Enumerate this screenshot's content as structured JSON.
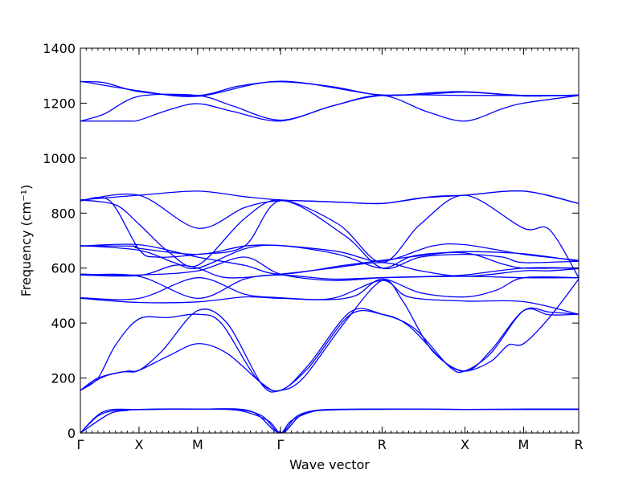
{
  "chart_data": {
    "type": "line",
    "title": "",
    "xlabel": "Wave vector",
    "ylabel": "Frequency (cm⁻¹)",
    "ylim": [
      0,
      1400
    ],
    "yticks": [
      0,
      200,
      400,
      600,
      800,
      1000,
      1200,
      1400
    ],
    "x_points": [
      {
        "label": "Γ",
        "x": 0
      },
      {
        "label": "X",
        "x": 1
      },
      {
        "label": "M",
        "x": 2
      },
      {
        "label": "Γ",
        "x": 3.414
      },
      {
        "label": "R",
        "x": 5.146
      },
      {
        "label": "X",
        "x": 6.56
      },
      {
        "label": "M",
        "x": 7.56
      },
      {
        "label": "R",
        "x": 8.5
      }
    ],
    "xlim": [
      0,
      8.5
    ],
    "grid": false,
    "line_color": "#0000ff",
    "series": [
      {
        "values": [
          [
            0,
            0
          ],
          [
            0.3,
            62
          ],
          [
            0.6,
            82
          ],
          [
            1,
            85
          ],
          [
            2,
            87
          ],
          [
            2.7,
            85
          ],
          [
            3.1,
            62
          ],
          [
            3.414,
            0
          ],
          [
            3.7,
            62
          ],
          [
            4.1,
            82
          ],
          [
            5.146,
            87
          ],
          [
            6.56,
            86
          ],
          [
            7.56,
            86
          ],
          [
            8.5,
            86
          ]
        ]
      },
      {
        "values": [
          [
            0,
            0
          ],
          [
            0.5,
            70
          ],
          [
            0.8,
            82
          ],
          [
            1,
            85
          ],
          [
            2,
            87
          ],
          [
            2.7,
            82
          ],
          [
            3.2,
            45
          ],
          [
            3.414,
            0
          ],
          [
            3.6,
            45
          ],
          [
            4.0,
            80
          ],
          [
            4.5,
            86
          ],
          [
            5.146,
            87
          ],
          [
            6.56,
            86
          ],
          [
            7.56,
            86
          ],
          [
            8.5,
            86
          ]
        ]
      },
      {
        "values": [
          [
            0,
            0
          ],
          [
            0.4,
            78
          ],
          [
            1,
            86
          ],
          [
            2,
            87
          ],
          [
            2.9,
            80
          ],
          [
            3.414,
            0
          ],
          [
            3.9,
            78
          ],
          [
            5.146,
            86
          ],
          [
            6.56,
            86
          ],
          [
            7.56,
            87
          ],
          [
            8.5,
            87
          ]
        ]
      },
      {
        "values": [
          [
            0,
            155
          ],
          [
            0.3,
            200
          ],
          [
            0.7,
            222
          ],
          [
            1,
            228
          ],
          [
            1.4,
            300
          ],
          [
            2,
            445
          ],
          [
            2.5,
            400
          ],
          [
            3.1,
            175
          ],
          [
            3.414,
            155
          ],
          [
            3.8,
            200
          ],
          [
            4.5,
            400
          ],
          [
            5.146,
            555
          ],
          [
            5.5,
            480
          ],
          [
            6.0,
            300
          ],
          [
            6.56,
            225
          ],
          [
            7.0,
            300
          ],
          [
            7.56,
            445
          ],
          [
            8.0,
            430
          ],
          [
            8.5,
            432
          ]
        ]
      },
      {
        "values": [
          [
            0,
            155
          ],
          [
            0.4,
            205
          ],
          [
            0.8,
            225
          ],
          [
            1,
            228
          ],
          [
            1.5,
            280
          ],
          [
            2,
            325
          ],
          [
            2.5,
            290
          ],
          [
            3.1,
            180
          ],
          [
            3.414,
            155
          ],
          [
            3.9,
            240
          ],
          [
            4.6,
            430
          ],
          [
            5.146,
            432
          ],
          [
            5.6,
            390
          ],
          [
            6.2,
            260
          ],
          [
            6.56,
            225
          ],
          [
            7.0,
            260
          ],
          [
            7.3,
            320
          ],
          [
            7.56,
            325
          ],
          [
            8.0,
            420
          ],
          [
            8.5,
            560
          ]
        ]
      },
      {
        "values": [
          [
            0,
            155
          ],
          [
            0.3,
            200
          ],
          [
            0.6,
            320
          ],
          [
            1,
            415
          ],
          [
            1.5,
            420
          ],
          [
            2,
            432
          ],
          [
            2.4,
            400
          ],
          [
            3.0,
            200
          ],
          [
            3.414,
            155
          ],
          [
            3.9,
            250
          ],
          [
            4.6,
            440
          ],
          [
            5.146,
            432
          ],
          [
            5.7,
            380
          ],
          [
            6.3,
            240
          ],
          [
            6.56,
            226
          ],
          [
            7.0,
            290
          ],
          [
            7.56,
            445
          ],
          [
            8.0,
            440
          ],
          [
            8.5,
            432
          ]
        ]
      },
      {
        "values": [
          [
            0,
            490
          ],
          [
            1,
            475
          ],
          [
            2,
            477
          ],
          [
            2.8,
            495
          ],
          [
            3.414,
            490
          ],
          [
            4.3,
            490
          ],
          [
            5.146,
            555
          ],
          [
            5.6,
            495
          ],
          [
            6.56,
            480
          ],
          [
            7.56,
            478
          ],
          [
            8.5,
            432
          ]
        ]
      },
      {
        "values": [
          [
            0,
            492
          ],
          [
            1,
            490
          ],
          [
            2,
            565
          ],
          [
            2.8,
            505
          ],
          [
            3.414,
            492
          ],
          [
            4.2,
            485
          ],
          [
            4.7,
            500
          ],
          [
            5.146,
            560
          ],
          [
            5.8,
            510
          ],
          [
            6.56,
            495
          ],
          [
            7.1,
            520
          ],
          [
            7.56,
            565
          ],
          [
            8.5,
            565
          ]
        ]
      },
      {
        "values": [
          [
            0,
            575
          ],
          [
            1,
            570
          ],
          [
            2,
            490
          ],
          [
            2.8,
            560
          ],
          [
            3.414,
            575
          ],
          [
            4.3,
            560
          ],
          [
            5.146,
            565
          ],
          [
            6.56,
            570
          ],
          [
            7.56,
            565
          ],
          [
            8.5,
            565
          ]
        ]
      },
      {
        "values": [
          [
            0,
            578
          ],
          [
            1,
            575
          ],
          [
            2,
            590
          ],
          [
            2.8,
            640
          ],
          [
            3.414,
            578
          ],
          [
            4.3,
            555
          ],
          [
            5.146,
            565
          ],
          [
            6.0,
            570
          ],
          [
            6.56,
            575
          ],
          [
            7.56,
            600
          ],
          [
            8.5,
            600
          ]
        ]
      },
      {
        "values": [
          [
            0,
            575
          ],
          [
            1,
            573
          ],
          [
            1.6,
            610
          ],
          [
            2,
            600
          ],
          [
            2.5,
            565
          ],
          [
            3.414,
            578
          ],
          [
            4.3,
            600
          ],
          [
            5.146,
            620
          ],
          [
            5.8,
            590
          ],
          [
            6.56,
            570
          ],
          [
            7.56,
            590
          ],
          [
            8.0,
            590
          ],
          [
            8.5,
            598
          ]
        ]
      },
      {
        "values": [
          [
            0,
            680
          ],
          [
            0.9,
            680
          ],
          [
            1,
            672
          ],
          [
            2,
            650
          ],
          [
            2.8,
            680
          ],
          [
            3.414,
            682
          ],
          [
            4.4,
            660
          ],
          [
            5.146,
            625
          ],
          [
            6.0,
            680
          ],
          [
            6.56,
            685
          ],
          [
            7.56,
            650
          ],
          [
            8.5,
            628
          ]
        ]
      },
      {
        "values": [
          [
            0,
            682
          ],
          [
            1,
            665
          ],
          [
            1.6,
            620
          ],
          [
            2,
            600
          ],
          [
            2.8,
            670
          ],
          [
            3.414,
            682
          ],
          [
            4.4,
            650
          ],
          [
            5.146,
            600
          ],
          [
            5.7,
            645
          ],
          [
            6.56,
            655
          ],
          [
            7.2,
            615
          ],
          [
            7.56,
            600
          ],
          [
            8.2,
            600
          ],
          [
            8.5,
            598
          ]
        ]
      },
      {
        "values": [
          [
            0,
            680
          ],
          [
            1,
            685
          ],
          [
            2,
            640
          ],
          [
            2.8,
            610
          ],
          [
            3.414,
            578
          ],
          [
            4.5,
            610
          ],
          [
            5.146,
            628
          ],
          [
            6.0,
            650
          ],
          [
            6.56,
            660
          ],
          [
            7.56,
            652
          ],
          [
            8.5,
            625
          ]
        ]
      },
      {
        "values": [
          [
            0,
            845
          ],
          [
            0.5,
            845
          ],
          [
            1,
            668
          ],
          [
            1.3,
            640
          ],
          [
            2,
            650
          ],
          [
            2.8,
            680
          ],
          [
            3.414,
            845
          ],
          [
            4.5,
            720
          ],
          [
            5.146,
            600
          ],
          [
            5.8,
            640
          ],
          [
            6.56,
            650
          ],
          [
            7.2,
            640
          ],
          [
            7.56,
            620
          ],
          [
            8.5,
            625
          ]
        ]
      },
      {
        "values": [
          [
            0,
            848
          ],
          [
            0.6,
            830
          ],
          [
            1,
            760
          ],
          [
            1.5,
            660
          ],
          [
            2,
            610
          ],
          [
            2.8,
            780
          ],
          [
            3.414,
            848
          ],
          [
            4.4,
            760
          ],
          [
            5.146,
            620
          ],
          [
            5.8,
            760
          ],
          [
            6.56,
            865
          ],
          [
            7.56,
            745
          ],
          [
            8.0,
            740
          ],
          [
            8.5,
            565
          ]
        ]
      },
      {
        "values": [
          [
            0,
            845
          ],
          [
            1,
            865
          ],
          [
            2,
            745
          ],
          [
            2.8,
            820
          ],
          [
            3.414,
            845
          ],
          [
            4.4,
            840
          ],
          [
            5.146,
            835
          ],
          [
            6.0,
            860
          ],
          [
            6.56,
            865
          ],
          [
            7.56,
            880
          ],
          [
            8.5,
            835
          ]
        ]
      },
      {
        "values": [
          [
            0,
            848
          ],
          [
            1,
            865
          ],
          [
            2,
            880
          ],
          [
            2.8,
            860
          ],
          [
            3.414,
            848
          ],
          [
            4.4,
            840
          ],
          [
            5.146,
            835
          ],
          [
            5.8,
            855
          ],
          [
            6.56,
            865
          ],
          [
            7.56,
            880
          ],
          [
            8.5,
            835
          ]
        ]
      },
      {
        "values": [
          [
            0,
            1135
          ],
          [
            0.8,
            1135
          ],
          [
            1,
            1138
          ],
          [
            1.5,
            1175
          ],
          [
            2,
            1198
          ],
          [
            2.6,
            1170
          ],
          [
            3.414,
            1135
          ],
          [
            4.3,
            1190
          ],
          [
            5.146,
            1228
          ],
          [
            5.9,
            1170
          ],
          [
            6.56,
            1135
          ],
          [
            7.2,
            1180
          ],
          [
            7.56,
            1200
          ],
          [
            8.5,
            1228
          ]
        ]
      },
      {
        "values": [
          [
            0,
            1135
          ],
          [
            0.4,
            1160
          ],
          [
            1,
            1225
          ],
          [
            2,
            1228
          ],
          [
            2.6,
            1190
          ],
          [
            3.414,
            1138
          ],
          [
            4.3,
            1190
          ],
          [
            5.146,
            1228
          ],
          [
            6.56,
            1228
          ],
          [
            7.56,
            1228
          ],
          [
            8.5,
            1228
          ]
        ]
      },
      {
        "values": [
          [
            0,
            1278
          ],
          [
            0.4,
            1275
          ],
          [
            1,
            1242
          ],
          [
            2,
            1228
          ],
          [
            2.7,
            1262
          ],
          [
            3.414,
            1278
          ],
          [
            4.3,
            1260
          ],
          [
            5.146,
            1228
          ],
          [
            6.0,
            1238
          ],
          [
            6.56,
            1242
          ],
          [
            7.56,
            1228
          ],
          [
            8.5,
            1228
          ]
        ]
      },
      {
        "values": [
          [
            0,
            1280
          ],
          [
            1,
            1245
          ],
          [
            2,
            1225
          ],
          [
            3.414,
            1280
          ],
          [
            5.146,
            1230
          ],
          [
            6.56,
            1240
          ],
          [
            7.56,
            1226
          ],
          [
            8.5,
            1230
          ]
        ]
      }
    ]
  }
}
